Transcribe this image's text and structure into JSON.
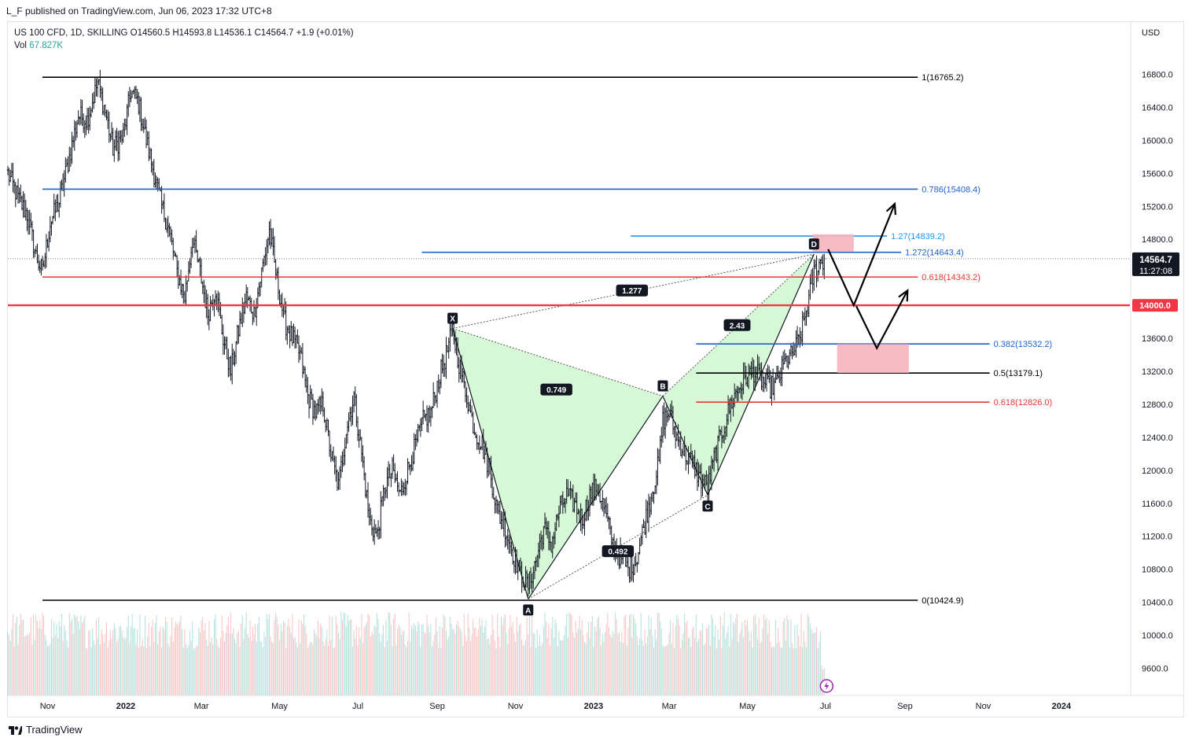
{
  "header": {
    "published": "L_F published on TradingView.com, Jun 06, 2023 17:32 UTC+8"
  },
  "legend": {
    "symbol_line": "US 100 CFD, 1D, SKILLING  O14560.5  H14593.8  L14536.1  C14564.7  +1.9 (+0.01%)",
    "vol_label": "Vol",
    "vol_value": "67.827K"
  },
  "footer": {
    "brand": "TradingView"
  },
  "colors": {
    "up": "#26a69a",
    "down": "#ef5350",
    "fib_black": "#000000",
    "fib_blue": "#1e62d0",
    "fib_red": "#e53935",
    "line_red": "#f23645",
    "harmonic_fill": "#c8f5c8",
    "box_fill": "#f8b4bc",
    "axis_text": "#131722"
  },
  "chart_data": {
    "type": "candlestick",
    "title": "US 100 CFD, 1D, SKILLING",
    "currency": "USD",
    "ylim": [
      9300,
      17300
    ],
    "y_ticks": [
      9600,
      10000,
      10400,
      10800,
      11200,
      11600,
      12000,
      12400,
      12800,
      13200,
      13600,
      14000,
      14400,
      14800,
      15200,
      15600,
      16000,
      16400,
      16800
    ],
    "x_labels": [
      "Nov",
      "2022",
      "Mar",
      "May",
      "Jul",
      "Sep",
      "Nov",
      "2023",
      "Mar",
      "May",
      "Jul",
      "Sep",
      "Nov",
      "2024"
    ],
    "x_label_positions_days": [
      31,
      92,
      151,
      212,
      273,
      335,
      396,
      457,
      516,
      577,
      638,
      700,
      761,
      822
    ],
    "date_range_days": [
      0,
      885
    ],
    "last_price": {
      "value": 14564.7,
      "label": "14564.7",
      "countdown": "11:27:08"
    },
    "hline": {
      "value": 14000,
      "label": "14000.0"
    },
    "fib_levels": [
      {
        "label": "1(16765.2)",
        "value": 16765.2,
        "color": "black",
        "from_day": 27,
        "to_day": 710
      },
      {
        "label": "0.786(15408.4)",
        "value": 15408.4,
        "color": "blue",
        "from_day": 27,
        "to_day": 710
      },
      {
        "label": "0.618(14343.2)",
        "value": 14343.2,
        "color": "red",
        "from_day": 27,
        "to_day": 710
      },
      {
        "label": "0(10424.9)",
        "value": 10424.9,
        "color": "black",
        "from_day": 27,
        "to_day": 710
      },
      {
        "label": "1.27(14839.2)",
        "value": 14839.2,
        "color": "lightblue",
        "from_day": 486,
        "to_day": 686
      },
      {
        "label": "1.272(14643.4)",
        "value": 14643.4,
        "color": "blue",
        "from_day": 323,
        "to_day": 697
      },
      {
        "label": "0.382(13532.2)",
        "value": 13532.2,
        "color": "blue",
        "from_day": 537,
        "to_day": 766
      },
      {
        "label": "0.5(13179.1)",
        "value": 13179.1,
        "color": "black",
        "from_day": 537,
        "to_day": 766
      },
      {
        "label": "0.618(12826.0)",
        "value": 12826.0,
        "color": "red",
        "from_day": 537,
        "to_day": 766
      }
    ],
    "harmonic_points": [
      {
        "label": "X",
        "day": 347,
        "value": 13720
      },
      {
        "label": "A",
        "day": 406,
        "value": 10440
      },
      {
        "label": "B",
        "day": 511,
        "value": 12900
      },
      {
        "label": "C",
        "day": 546,
        "value": 11700
      },
      {
        "label": "D",
        "day": 629,
        "value": 14620
      }
    ],
    "ratio_labels": [
      {
        "label": "0.749",
        "day": 428,
        "value": 12980
      },
      {
        "label": "0.492",
        "day": 476,
        "value": 11020
      },
      {
        "label": "2.43",
        "day": 569,
        "value": 13760
      },
      {
        "label": "1.277",
        "day": 487,
        "value": 14180
      }
    ],
    "projection_path": [
      {
        "day": 640,
        "value": 14680
      },
      {
        "day": 660,
        "value": 14000
      },
      {
        "day": 692,
        "value": 15230
      }
    ],
    "projection_path_2": [
      {
        "day": 662,
        "value": 13990
      },
      {
        "day": 678,
        "value": 13480
      },
      {
        "day": 702,
        "value": 14180
      }
    ],
    "boxes": [
      {
        "day_from": 628,
        "day_to": 660,
        "value_low": 14650,
        "value_high": 14860
      },
      {
        "day_from": 647,
        "day_to": 703,
        "value_low": 13180,
        "value_high": 13530
      }
    ],
    "price_path": [
      [
        0,
        15600
      ],
      [
        8,
        15300
      ],
      [
        15,
        15100
      ],
      [
        22,
        14600
      ],
      [
        27,
        14400
      ],
      [
        33,
        15000
      ],
      [
        40,
        15250
      ],
      [
        48,
        15800
      ],
      [
        55,
        16300
      ],
      [
        62,
        16250
      ],
      [
        70,
        16700
      ],
      [
        76,
        16350
      ],
      [
        82,
        15900
      ],
      [
        90,
        16050
      ],
      [
        96,
        16600
      ],
      [
        102,
        16450
      ],
      [
        108,
        16000
      ],
      [
        114,
        15600
      ],
      [
        120,
        15200
      ],
      [
        126,
        14900
      ],
      [
        132,
        14400
      ],
      [
        138,
        14100
      ],
      [
        144,
        14800
      ],
      [
        150,
        14400
      ],
      [
        156,
        13900
      ],
      [
        162,
        14200
      ],
      [
        168,
        13600
      ],
      [
        174,
        13200
      ],
      [
        180,
        13700
      ],
      [
        186,
        14100
      ],
      [
        192,
        13900
      ],
      [
        198,
        14400
      ],
      [
        204,
        14900
      ],
      [
        210,
        14300
      ],
      [
        216,
        13800
      ],
      [
        222,
        13600
      ],
      [
        228,
        13400
      ],
      [
        234,
        12900
      ],
      [
        240,
        12700
      ],
      [
        246,
        12800
      ],
      [
        252,
        12200
      ],
      [
        258,
        11800
      ],
      [
        264,
        12500
      ],
      [
        270,
        12900
      ],
      [
        276,
        12200
      ],
      [
        282,
        11400
      ],
      [
        288,
        11200
      ],
      [
        294,
        11800
      ],
      [
        300,
        12000
      ],
      [
        306,
        11700
      ],
      [
        312,
        12000
      ],
      [
        318,
        12300
      ],
      [
        324,
        12600
      ],
      [
        330,
        12700
      ],
      [
        336,
        13100
      ],
      [
        342,
        13400
      ],
      [
        347,
        13700
      ],
      [
        352,
        13300
      ],
      [
        358,
        12900
      ],
      [
        364,
        12500
      ],
      [
        370,
        12300
      ],
      [
        376,
        12000
      ],
      [
        382,
        11500
      ],
      [
        388,
        11300
      ],
      [
        394,
        11000
      ],
      [
        400,
        10750
      ],
      [
        406,
        10600
      ],
      [
        412,
        10900
      ],
      [
        418,
        11300
      ],
      [
        424,
        11100
      ],
      [
        430,
        11500
      ],
      [
        436,
        11700
      ],
      [
        442,
        11600
      ],
      [
        448,
        11400
      ],
      [
        454,
        11700
      ],
      [
        460,
        11800
      ],
      [
        466,
        11500
      ],
      [
        472,
        11100
      ],
      [
        478,
        10950
      ],
      [
        484,
        10800
      ],
      [
        490,
        10900
      ],
      [
        496,
        11300
      ],
      [
        502,
        11700
      ],
      [
        508,
        12100
      ],
      [
        511,
        12600
      ],
      [
        516,
        12700
      ],
      [
        522,
        12400
      ],
      [
        528,
        12200
      ],
      [
        534,
        12100
      ],
      [
        540,
        11900
      ],
      [
        546,
        11800
      ],
      [
        552,
        12200
      ],
      [
        558,
        12500
      ],
      [
        564,
        12800
      ],
      [
        570,
        13000
      ],
      [
        576,
        13100
      ],
      [
        582,
        13200
      ],
      [
        588,
        13100
      ],
      [
        594,
        13000
      ],
      [
        600,
        13050
      ],
      [
        606,
        13300
      ],
      [
        612,
        13400
      ],
      [
        618,
        13600
      ],
      [
        624,
        14000
      ],
      [
        629,
        14400
      ],
      [
        634,
        14520
      ],
      [
        637,
        14565
      ]
    ],
    "volume": {
      "label": "Vol",
      "last": "67.827K",
      "typical": 67000,
      "max": 110000
    }
  }
}
